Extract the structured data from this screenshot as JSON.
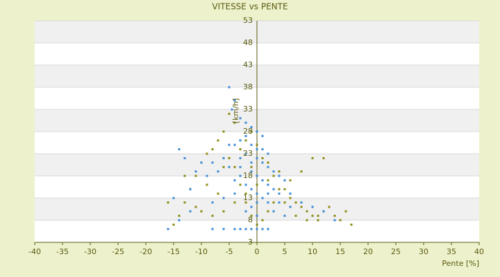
{
  "chart_data": {
    "type": "scatter",
    "title": "VITESSE vs PENTE",
    "x_label": "Pente [%]",
    "y_label": "[km/h]",
    "xlim": [
      -40,
      40
    ],
    "xticks": [
      -40,
      -35,
      -30,
      -25,
      -20,
      -15,
      -10,
      -5,
      0,
      5,
      10,
      15,
      20,
      25,
      30,
      35,
      40
    ],
    "ylim": [
      3,
      53
    ],
    "yticks": [
      3,
      8,
      13,
      18,
      23,
      28,
      33,
      38,
      43,
      48,
      53
    ],
    "grid": true,
    "series": [
      {
        "color": "#8a8a10",
        "x": [
          -5,
          -4,
          -6,
          -7,
          -8,
          -9,
          -10,
          -11,
          -12,
          -13,
          -14,
          -10,
          -8,
          -6,
          -4,
          -2,
          0,
          2,
          4,
          5,
          6,
          7,
          8,
          9,
          10,
          11,
          12,
          13,
          14,
          15,
          16,
          17,
          10,
          12,
          8,
          6,
          4,
          3,
          2,
          1,
          0,
          -1,
          -2,
          -3,
          -4,
          -5,
          -3,
          -2,
          -1,
          0,
          1,
          2,
          3,
          5,
          7,
          9,
          11,
          -7,
          -9,
          -11,
          -15,
          -16,
          -13,
          -6,
          -1
        ],
        "values": [
          32,
          30,
          28,
          26,
          24,
          23,
          21,
          18,
          15,
          12,
          9,
          10,
          9,
          10,
          12,
          14,
          16,
          17,
          19,
          15,
          13,
          12,
          11,
          10,
          9,
          8,
          10,
          11,
          9,
          8,
          10,
          7,
          22,
          22,
          19,
          17,
          15,
          12,
          10,
          8,
          7,
          9,
          12,
          16,
          20,
          22,
          24,
          26,
          28,
          25,
          22,
          21,
          18,
          12,
          9,
          8,
          9,
          14,
          16,
          11,
          7,
          12,
          18,
          20,
          20
        ]
      },
      {
        "color": "#3a8ad6",
        "x": [
          -5,
          -4,
          -4.5,
          -3,
          -2,
          -1,
          0,
          1,
          -2,
          -3,
          -4,
          -5,
          -1,
          0,
          1,
          2,
          -2,
          -3,
          -6,
          -8,
          -10,
          -14,
          -13,
          -11,
          -9,
          -7,
          -5,
          -3,
          -1,
          0,
          1,
          2,
          3,
          4,
          5,
          -1,
          0,
          1,
          2,
          3,
          4,
          6,
          8,
          10,
          12,
          14,
          -2,
          -1,
          0,
          1,
          2,
          -4,
          -6,
          -8,
          -12,
          -14,
          -16,
          -2,
          0,
          3,
          5,
          -15,
          -12,
          -3,
          -2,
          -1,
          0,
          1,
          2,
          -4,
          -6,
          -8,
          4,
          6,
          -1,
          0,
          2,
          -3,
          -4
        ],
        "values": [
          38,
          35,
          33,
          31,
          30,
          29,
          28,
          27,
          27,
          26,
          25,
          25,
          25,
          24,
          24,
          23,
          23,
          22,
          22,
          21,
          21,
          24,
          22,
          19,
          18,
          19,
          20,
          20,
          21,
          22,
          21,
          20,
          19,
          18,
          17,
          19,
          18,
          17,
          16,
          15,
          14,
          14,
          12,
          11,
          10,
          8,
          16,
          15,
          14,
          13,
          12,
          14,
          13,
          12,
          10,
          8,
          6,
          10,
          9,
          10,
          9,
          13,
          15,
          6,
          6,
          6,
          6,
          6,
          6,
          6,
          6,
          6,
          12,
          11,
          11,
          12,
          14,
          18,
          17
        ]
      }
    ]
  }
}
